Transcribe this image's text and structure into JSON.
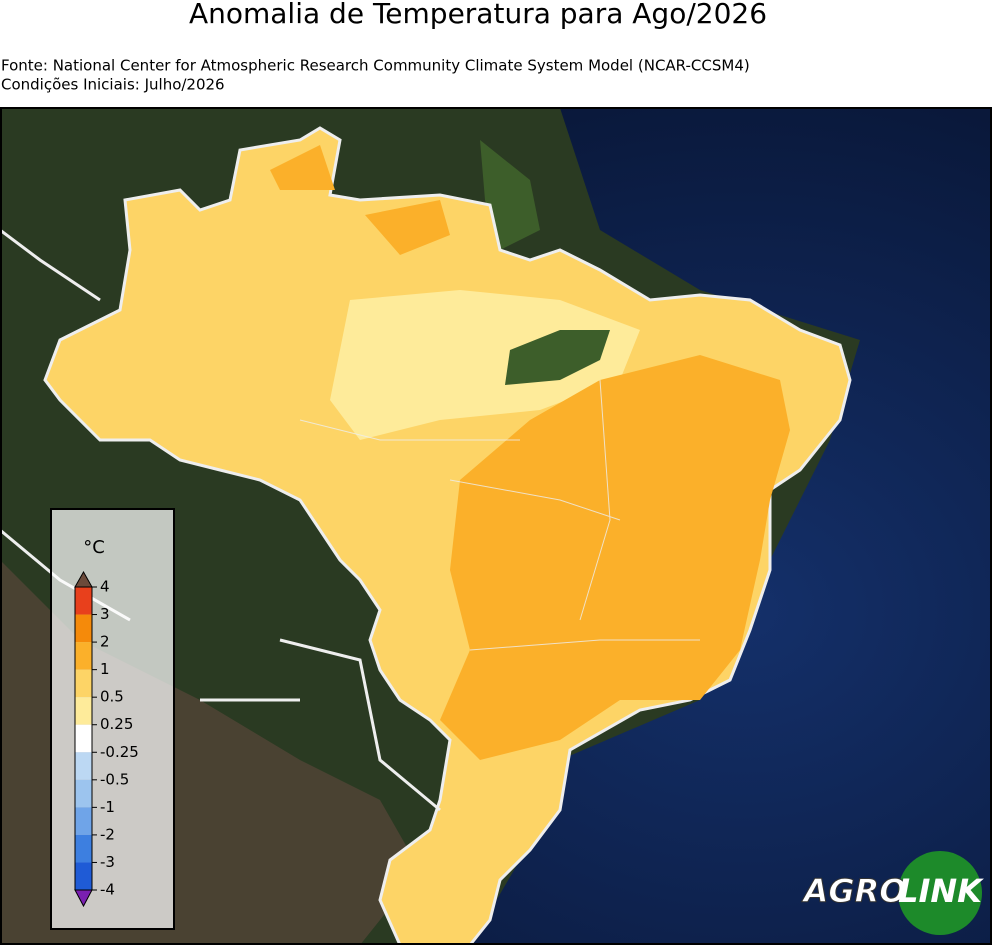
{
  "header": {
    "title": "Anomalia de Temperatura para Ago/2026",
    "source": "Fonte: National Center for Atmospheric Research Community Climate System Model (NCAR-CCSM4)",
    "initial_conditions": "Condições Iniciais: Julho/2026"
  },
  "legend": {
    "unit": "°C",
    "ticks": [
      "4",
      "3",
      "2",
      "1",
      "0.5",
      "0.25",
      "-0.25",
      "-0.5",
      "-1",
      "-2",
      "-3",
      "-4"
    ],
    "colors": [
      "#e8401c",
      "#f58a0a",
      "#fbb02a",
      "#fdd466",
      "#feeb9a",
      "#ffffff",
      "#bcd8f3",
      "#9cc4ee",
      "#6fa4e8",
      "#3d7fe0",
      "#1f5bd6"
    ]
  },
  "logo": {
    "left": "AGRO",
    "right": "LINK"
  }
}
